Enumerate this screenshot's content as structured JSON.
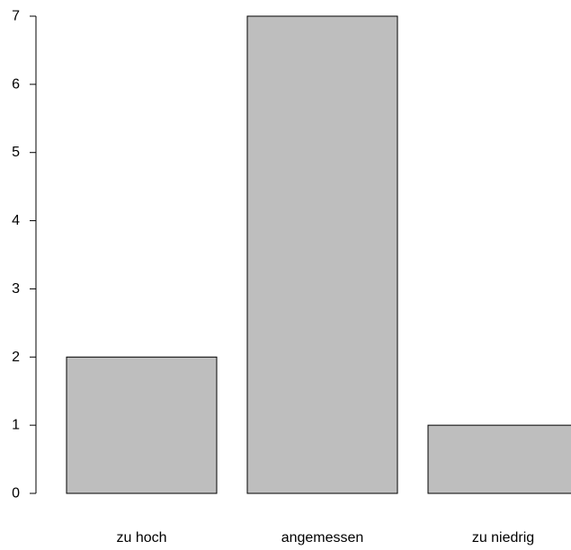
{
  "chart_data": {
    "type": "bar",
    "title": "",
    "xlabel": "",
    "ylabel": "",
    "categories": [
      "zu hoch",
      "angemessen",
      "zu niedrig"
    ],
    "values": [
      2,
      7,
      1
    ],
    "ylim": [
      0,
      7
    ],
    "yticks": [
      "0",
      "1",
      "2",
      "3",
      "4",
      "5",
      "6",
      "7"
    ],
    "grid": false,
    "bar_color": "#bebebe",
    "edge_color": "#000000"
  }
}
